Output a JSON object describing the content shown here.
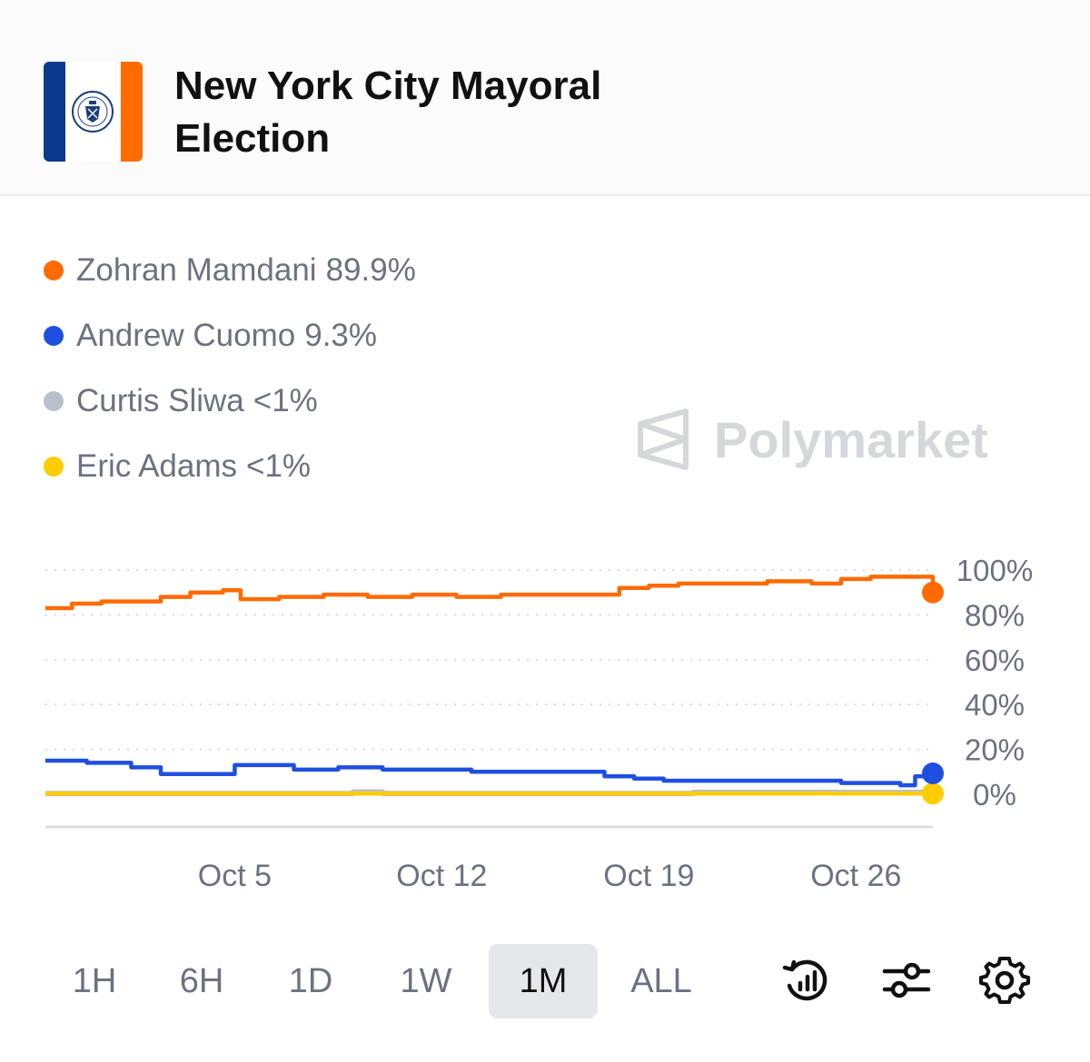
{
  "header": {
    "title": "New York City Mayoral Election",
    "flag_icon": "nyc-flag-icon",
    "colors": {
      "flag_blue": "#0b3a8c",
      "flag_orange": "#ff6b00"
    }
  },
  "legend": [
    {
      "label": "Zohran Mamdani",
      "value": "89.9%",
      "color": "#ff6b00"
    },
    {
      "label": "Andrew Cuomo",
      "value": "9.3%",
      "color": "#1f4fe0"
    },
    {
      "label": "Curtis Sliwa",
      "value": "<1%",
      "color": "#b8c0cc"
    },
    {
      "label": "Eric Adams",
      "value": "<1%",
      "color": "#ffcc00"
    }
  ],
  "watermark": {
    "text": "Polymarket",
    "icon": "polymarket-logo-icon"
  },
  "chart_data": {
    "type": "line",
    "ylim": [
      0,
      100
    ],
    "y_ticks": [
      "100%",
      "80%",
      "60%",
      "40%",
      "20%",
      "0%"
    ],
    "y_tick_values": [
      100,
      80,
      60,
      40,
      20,
      0
    ],
    "x_tick_labels": [
      "Oct 5",
      "Oct 12",
      "Oct 19",
      "Oct 26"
    ],
    "x_tick_values": [
      5,
      12,
      19,
      26
    ],
    "xlim": [
      -1.4,
      28.6
    ],
    "grid": true,
    "series": [
      {
        "name": "Zohran Mamdani",
        "color": "#ff6b00",
        "x": [
          -1.4,
          -0.5,
          0.5,
          1.5,
          2.5,
          3.5,
          4.6,
          5.2,
          6.5,
          8.0,
          9.5,
          11.0,
          12.5,
          14.0,
          15.5,
          17.0,
          18.0,
          19.0,
          20.0,
          21.5,
          23.0,
          24.5,
          25.5,
          26.5,
          27.5,
          28.6
        ],
        "values": [
          83,
          85,
          86,
          86,
          88,
          90,
          91,
          87,
          88,
          89,
          88,
          89,
          88,
          89,
          89,
          89,
          92,
          93,
          94,
          94,
          95,
          94,
          96,
          97,
          97,
          90
        ]
      },
      {
        "name": "Andrew Cuomo",
        "color": "#1f4fe0",
        "x": [
          -1.4,
          0.0,
          1.5,
          2.5,
          4.0,
          5.0,
          6.0,
          7.0,
          8.5,
          10.0,
          11.5,
          13.0,
          14.5,
          16.0,
          17.5,
          18.5,
          19.5,
          21.0,
          22.5,
          24.0,
          25.5,
          26.5,
          27.5,
          28.0,
          28.6
        ],
        "values": [
          15,
          14,
          12,
          9,
          9,
          13,
          13,
          11,
          12,
          11,
          11,
          10,
          10,
          10,
          8,
          7,
          6,
          6,
          6,
          6,
          5,
          5,
          4,
          8,
          9.3
        ]
      },
      {
        "name": "Curtis Sliwa",
        "color": "#b8c0cc",
        "x": [
          -1.4,
          8.0,
          9.0,
          10.0,
          12.0,
          18.0,
          20.5,
          28.6
        ],
        "values": [
          0.3,
          0.3,
          1,
          0.3,
          0.3,
          0.3,
          0.8,
          0.4
        ]
      },
      {
        "name": "Eric Adams",
        "color": "#ffcc00",
        "x": [
          -1.4,
          28.6
        ],
        "values": [
          0.3,
          0.3
        ]
      }
    ]
  },
  "timeframes": [
    {
      "label": "1H",
      "active": false
    },
    {
      "label": "6H",
      "active": false
    },
    {
      "label": "1D",
      "active": false
    },
    {
      "label": "1W",
      "active": false
    },
    {
      "label": "1M",
      "active": true
    },
    {
      "label": "ALL",
      "active": false
    }
  ],
  "tools": [
    {
      "icon": "history-chart-icon"
    },
    {
      "icon": "sliders-icon"
    },
    {
      "icon": "gear-icon"
    }
  ]
}
